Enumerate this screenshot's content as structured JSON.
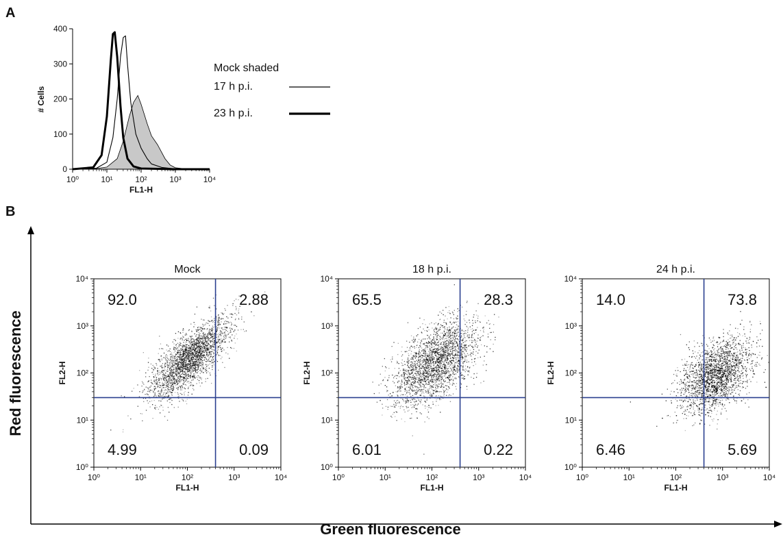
{
  "panels": {
    "a": "A",
    "b": "B"
  },
  "big_axes": {
    "y": "Red fluorescence",
    "x": "Green fluorescence"
  },
  "chart_data": [
    {
      "type": "area",
      "id": "histogram",
      "xlabel": "FL1-H",
      "ylabel": "# Cells",
      "x_scale": "log",
      "xlim": [
        1,
        10000
      ],
      "ylim": [
        0,
        400
      ],
      "x_ticks": [
        "10⁰",
        "10¹",
        "10²",
        "10³",
        "10⁴"
      ],
      "y_ticks": [
        "0",
        "100",
        "200",
        "300",
        "400"
      ],
      "legend": [
        "Mock shaded",
        "17 h p.i.",
        "23 h p.i."
      ],
      "series": [
        {
          "name": "Mock shaded",
          "style": "filled",
          "color": "#c8c8c8",
          "points": [
            [
              1,
              0
            ],
            [
              5,
              2
            ],
            [
              10,
              6
            ],
            [
              20,
              30
            ],
            [
              30,
              80
            ],
            [
              45,
              150
            ],
            [
              60,
              190
            ],
            [
              80,
              210
            ],
            [
              100,
              185
            ],
            [
              150,
              130
            ],
            [
              200,
              95
            ],
            [
              300,
              70
            ],
            [
              500,
              30
            ],
            [
              700,
              12
            ],
            [
              1000,
              4
            ],
            [
              2000,
              1
            ],
            [
              10000,
              0
            ]
          ]
        },
        {
          "name": "17 h p.i.",
          "style": "thin",
          "color": "#000000",
          "points": [
            [
              1,
              0
            ],
            [
              5,
              3
            ],
            [
              10,
              20
            ],
            [
              15,
              90
            ],
            [
              20,
              200
            ],
            [
              25,
              320
            ],
            [
              30,
              375
            ],
            [
              35,
              380
            ],
            [
              40,
              300
            ],
            [
              50,
              190
            ],
            [
              70,
              100
            ],
            [
              100,
              60
            ],
            [
              150,
              30
            ],
            [
              200,
              15
            ],
            [
              400,
              5
            ],
            [
              1000,
              1
            ],
            [
              10000,
              0
            ]
          ]
        },
        {
          "name": "23 h p.i.",
          "style": "thick",
          "color": "#000000",
          "points": [
            [
              1,
              0
            ],
            [
              4,
              5
            ],
            [
              7,
              40
            ],
            [
              10,
              150
            ],
            [
              13,
              310
            ],
            [
              15,
              385
            ],
            [
              17,
              390
            ],
            [
              20,
              320
            ],
            [
              25,
              180
            ],
            [
              30,
              90
            ],
            [
              40,
              30
            ],
            [
              60,
              8
            ],
            [
              100,
              2
            ],
            [
              1000,
              0
            ],
            [
              10000,
              0
            ]
          ]
        }
      ]
    },
    {
      "type": "scatter",
      "id": "mock",
      "title": "Mock",
      "xlabel": "FL1-H",
      "ylabel": "FL2-H",
      "x_scale": "log",
      "y_scale": "log",
      "xlim": [
        1,
        10000
      ],
      "ylim": [
        1,
        10000
      ],
      "gate": {
        "x": 400,
        "y": 30
      },
      "quadrants": {
        "upper_left": "92.0",
        "upper_right": "2.88",
        "lower_left": "4.99",
        "lower_right": "0.09"
      },
      "population": {
        "center_x": 110,
        "center_y": 200,
        "spread_log": 0.42,
        "correlation": 0.75
      }
    },
    {
      "type": "scatter",
      "id": "h18",
      "title": "18 h p.i.",
      "xlabel": "FL1-H",
      "ylabel": "FL2-H",
      "x_scale": "log",
      "y_scale": "log",
      "xlim": [
        1,
        10000
      ],
      "ylim": [
        1,
        10000
      ],
      "gate": {
        "x": 400,
        "y": 30
      },
      "quadrants": {
        "upper_left": "65.5",
        "upper_right": "28.3",
        "lower_left": "6.01",
        "lower_right": "0.22"
      },
      "population": {
        "center_x": 120,
        "center_y": 170,
        "spread_log": 0.45,
        "correlation": 0.55
      }
    },
    {
      "type": "scatter",
      "id": "h24",
      "title": "24 h p.i.",
      "xlabel": "FL1-H",
      "ylabel": "FL2-H",
      "x_scale": "log",
      "y_scale": "log",
      "xlim": [
        1,
        10000
      ],
      "ylim": [
        1,
        10000
      ],
      "gate": {
        "x": 400,
        "y": 30
      },
      "quadrants": {
        "upper_left": "14.0",
        "upper_right": "73.8",
        "lower_left": "6.46",
        "lower_right": "5.69"
      },
      "population": {
        "center_x": 700,
        "center_y": 90,
        "spread_log": 0.38,
        "correlation": 0.45
      }
    }
  ],
  "log_ticks": [
    "10⁰",
    "10¹",
    "10²",
    "10³",
    "10⁴"
  ],
  "colors": {
    "gate": "#2a3f8f",
    "shade": "#c8c8c8",
    "dot": "#000000"
  }
}
